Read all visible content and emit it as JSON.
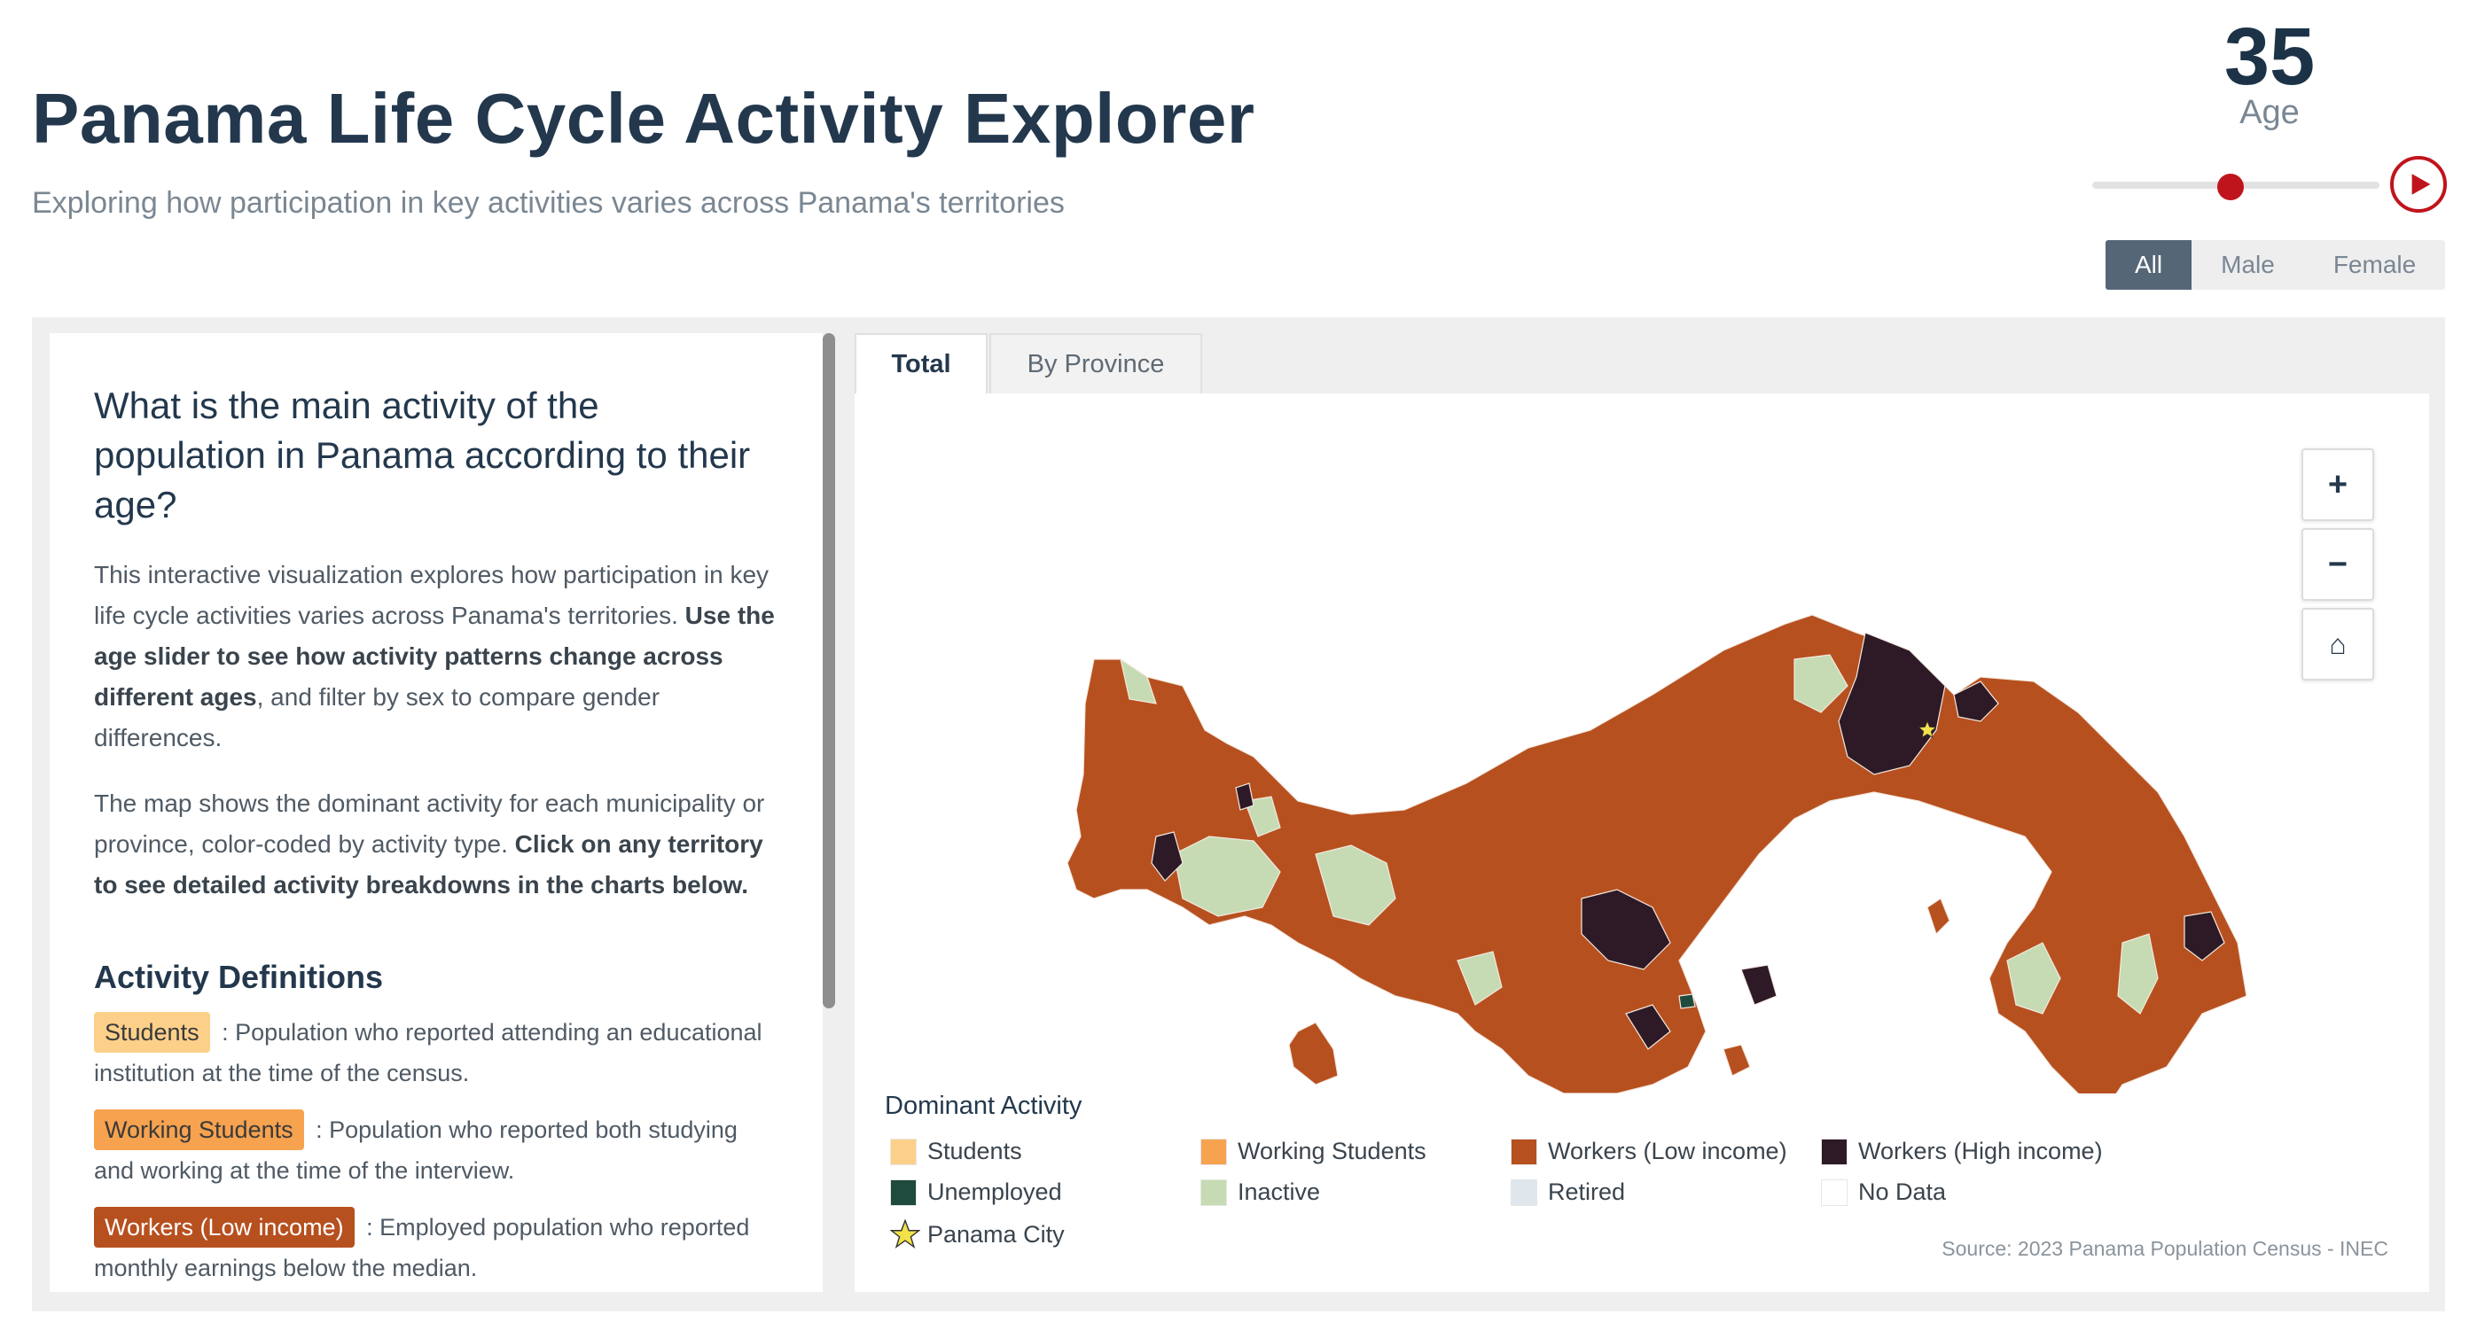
{
  "header": {
    "title": "Panama Life Cycle Activity Explorer",
    "subtitle": "Exploring how participation in key activities varies across Panama's territories"
  },
  "age_control": {
    "value": "35",
    "label": "Age",
    "slider_fraction": 0.48
  },
  "sex_filter": {
    "options": [
      "All",
      "Male",
      "Female"
    ],
    "selected": "All"
  },
  "info": {
    "question": "What is the main activity of the population in Panama according to their age?",
    "para1_a": "This interactive visualization explores how participation in key life cycle activities varies across Panama's territories. ",
    "para1_b": "Use the age slider to see how activity patterns change across different ages",
    "para1_c": ", and filter by sex to compare gender differences.",
    "para2_a": "The map shows the dominant activity for each municipality or province, color-coded by activity type. ",
    "para2_b": "Click on any territory to see detailed activity breakdowns in the charts below.",
    "definitions_heading": "Activity Definitions",
    "definitions": [
      {
        "term": "Students",
        "text": ": Population who reported attending an educational institution at the time of the census.",
        "color": "#fdd08a",
        "text_color": "#3a3a3a"
      },
      {
        "term": "Working Students",
        "text": ": Population who reported both studying and working at the time of the interview.",
        "color": "#f6a24f",
        "text_color": "#3a3a3a"
      },
      {
        "term": "Workers (Low income)",
        "text": ": Employed population who reported monthly earnings below the median.",
        "color": "#b7501f",
        "text_color": "#ffffff"
      }
    ]
  },
  "tabs": [
    "Total",
    "By Province"
  ],
  "active_tab": "Total",
  "zoom_controls": {
    "zoom_in": "+",
    "zoom_out": "−",
    "home": "⌂"
  },
  "legend": {
    "title": "Dominant Activity",
    "items": [
      {
        "label": "Students",
        "color": "#fdd08a"
      },
      {
        "label": "Working Students",
        "color": "#f6a24f"
      },
      {
        "label": "Workers (Low income)",
        "color": "#b7501f"
      },
      {
        "label": "Workers (High income)",
        "color": "#2e1a26"
      },
      {
        "label": "Unemployed",
        "color": "#1f4a3e"
      },
      {
        "label": "Inactive",
        "color": "#c6dbb3"
      },
      {
        "label": "Retired",
        "color": "#dfe7ec"
      },
      {
        "label": "No Data",
        "color": "#ffffff"
      }
    ],
    "marker_label": "Panama City",
    "marker_color": "#f2e24a"
  },
  "source": "Source: 2023 Panama Population Census - INEC"
}
